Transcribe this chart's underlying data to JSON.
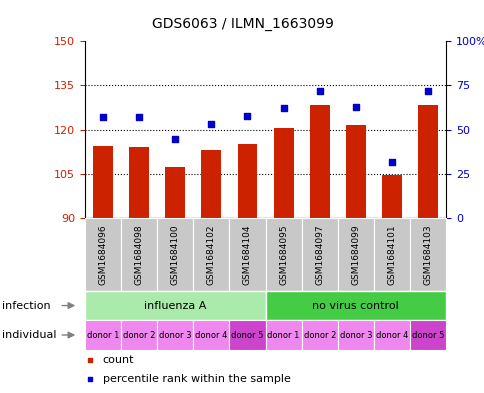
{
  "title": "GDS6063 / ILMN_1663099",
  "samples": [
    "GSM1684096",
    "GSM1684098",
    "GSM1684100",
    "GSM1684102",
    "GSM1684104",
    "GSM1684095",
    "GSM1684097",
    "GSM1684099",
    "GSM1684101",
    "GSM1684103"
  ],
  "counts": [
    114.5,
    114.0,
    107.5,
    113.0,
    115.0,
    120.5,
    128.5,
    121.5,
    104.5,
    128.5
  ],
  "percentiles": [
    57,
    57,
    45,
    53,
    58,
    62,
    72,
    63,
    32,
    72
  ],
  "ylim_left": [
    90,
    150
  ],
  "ylim_right": [
    0,
    100
  ],
  "yticks_left": [
    90,
    105,
    120,
    135,
    150
  ],
  "yticks_right": [
    0,
    25,
    50,
    75,
    100
  ],
  "ytick_labels_left": [
    "90",
    "105",
    "120",
    "135",
    "150"
  ],
  "ytick_labels_right": [
    "0",
    "25",
    "50",
    "75",
    "100%"
  ],
  "infection_groups": [
    {
      "label": "influenza A",
      "start": 0,
      "end": 5,
      "color": "#AAEAAA"
    },
    {
      "label": "no virus control",
      "start": 5,
      "end": 10,
      "color": "#44CC44"
    }
  ],
  "individual_labels": [
    "donor 1",
    "donor 2",
    "donor 3",
    "donor 4",
    "donor 5",
    "donor 1",
    "donor 2",
    "donor 3",
    "donor 4",
    "donor 5"
  ],
  "individual_colors": [
    "#EE88EE",
    "#EE88EE",
    "#EE88EE",
    "#EE88EE",
    "#CC44CC",
    "#EE88EE",
    "#EE88EE",
    "#EE88EE",
    "#EE88EE",
    "#CC44CC"
  ],
  "bar_color": "#CC2200",
  "dot_color": "#0000CC",
  "bar_width": 0.55,
  "grid_color": "#000000",
  "sample_bg_color": "#C8C8C8",
  "legend_square_size": 7,
  "legend_items": [
    {
      "color": "#CC2200",
      "label": "count"
    },
    {
      "color": "#0000CC",
      "label": "percentile rank within the sample"
    }
  ]
}
